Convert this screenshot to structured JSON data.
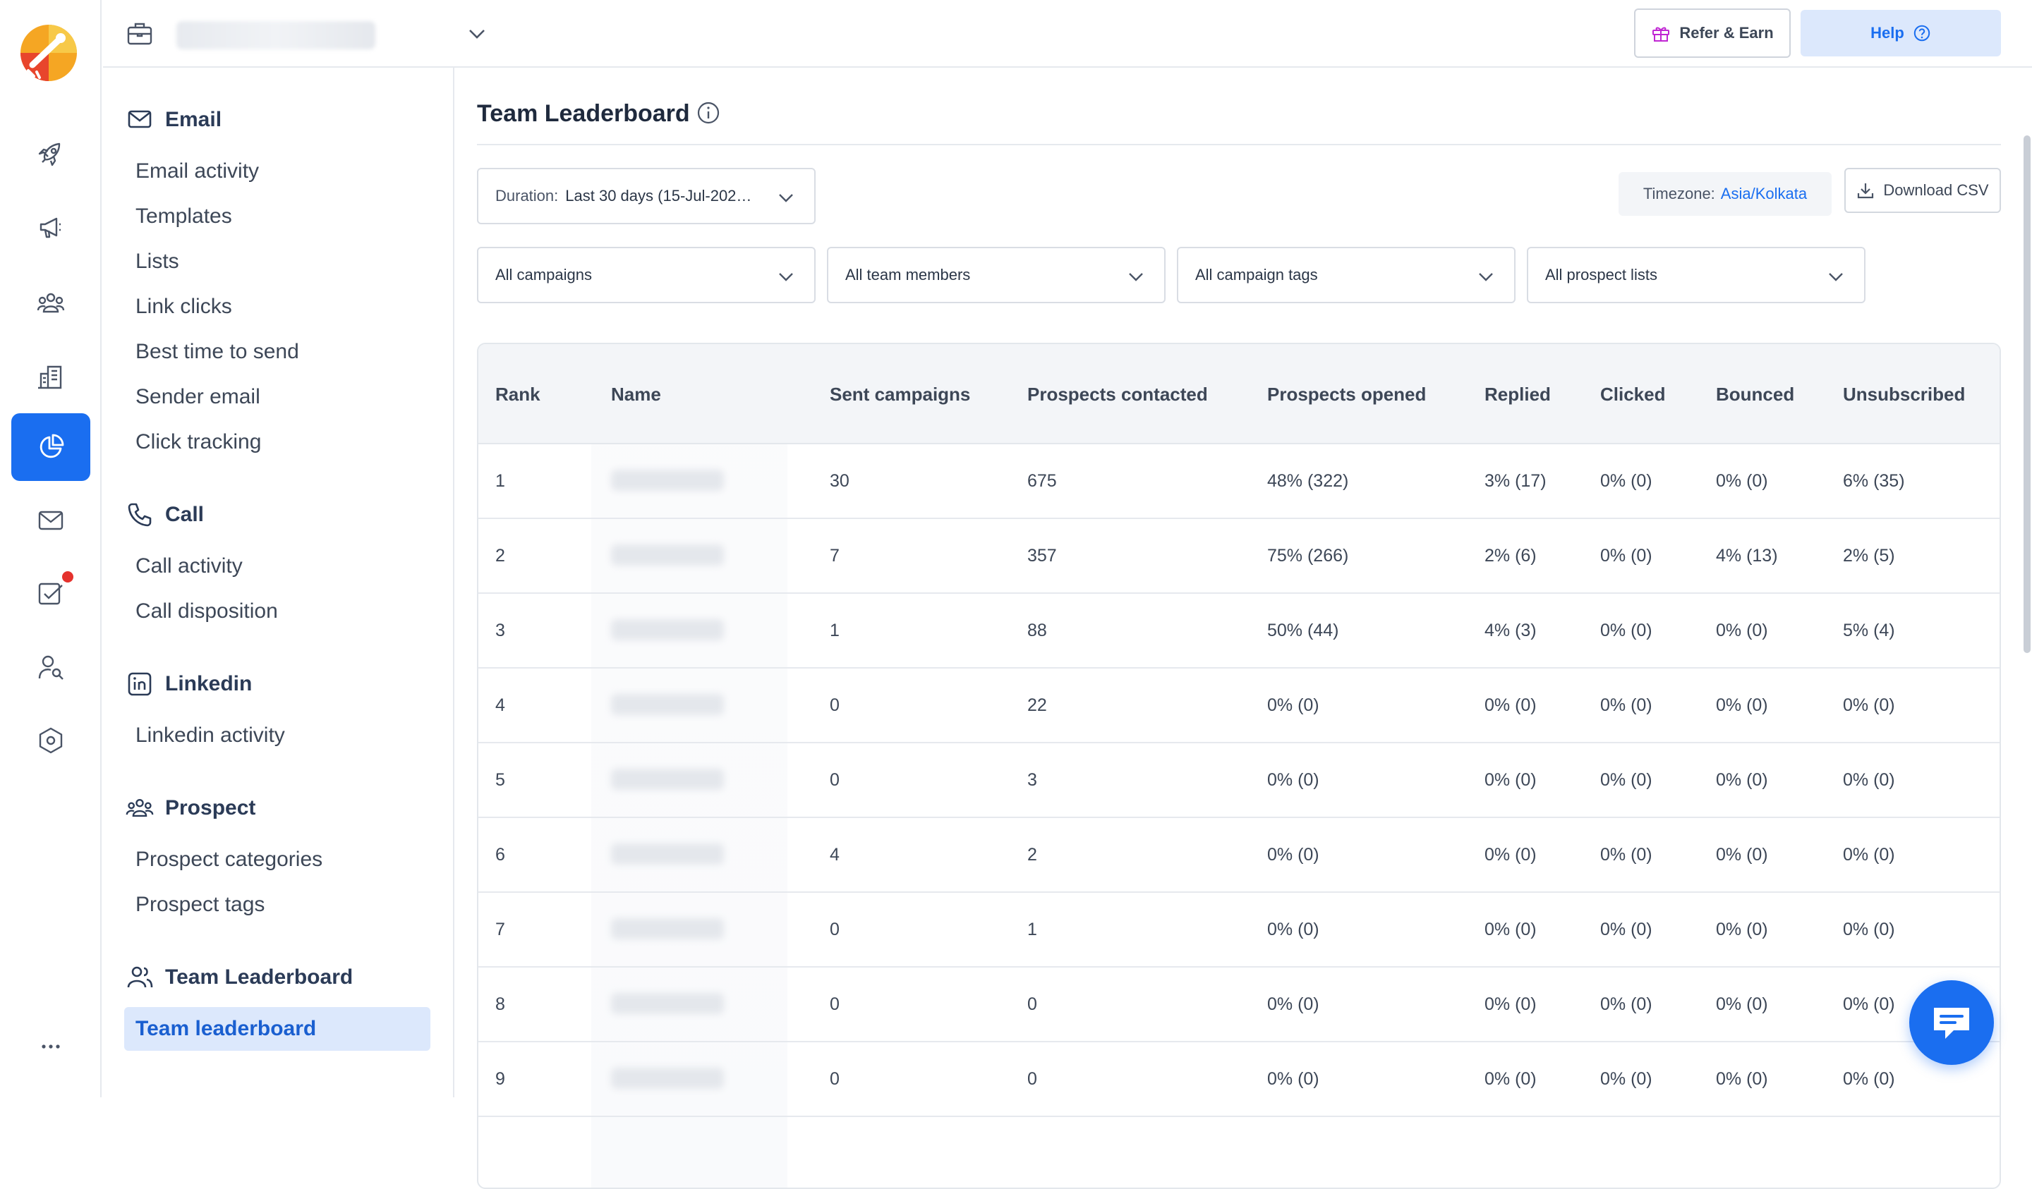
{
  "topbar": {
    "refer_label": "Refer & Earn",
    "help_label": "Help"
  },
  "rail": {
    "items": [
      {
        "icon": "rocket-icon"
      },
      {
        "icon": "megaphone-icon"
      },
      {
        "icon": "people-icon"
      },
      {
        "icon": "building-icon"
      },
      {
        "icon": "pie-chart-icon",
        "active": true
      },
      {
        "icon": "mail-icon"
      },
      {
        "icon": "task-check-icon",
        "badge": true
      },
      {
        "icon": "prospect-search-icon"
      },
      {
        "icon": "settings-hexagon-icon"
      },
      {
        "icon": "more-icon"
      }
    ]
  },
  "sidebar": {
    "email": {
      "title": "Email",
      "items": [
        "Email activity",
        "Templates",
        "Lists",
        "Link clicks",
        "Best time to send",
        "Sender email",
        "Click tracking"
      ]
    },
    "call": {
      "title": "Call",
      "items": [
        "Call activity",
        "Call disposition"
      ]
    },
    "linkedin": {
      "title": "Linkedin",
      "items": [
        "Linkedin activity"
      ]
    },
    "prospect": {
      "title": "Prospect",
      "items": [
        "Prospect categories",
        "Prospect tags"
      ]
    },
    "leaderboard": {
      "title": "Team Leaderboard",
      "items": [
        "Team leaderboard"
      ]
    }
  },
  "main": {
    "title": "Team Leaderboard",
    "duration_label": "Duration:",
    "duration_value": "Last 30 days (15-Jul-202…",
    "timezone_label": "Timezone:",
    "timezone_value": "Asia/Kolkata",
    "download_label": "Download CSV",
    "filters": [
      "All campaigns",
      "All team members",
      "All campaign tags",
      "All prospect lists"
    ]
  },
  "table": {
    "headers": [
      "Rank",
      "Name",
      "Sent campaigns",
      "Prospects contacted",
      "Prospects opened",
      "Replied",
      "Clicked",
      "Bounced",
      "Unsubscribed"
    ],
    "rows": [
      {
        "rank": "1",
        "sent": "30",
        "contacted": "675",
        "opened": "48% (322)",
        "replied": "3% (17)",
        "clicked": "0% (0)",
        "bounced": "0% (0)",
        "unsub": "6% (35)"
      },
      {
        "rank": "2",
        "sent": "7",
        "contacted": "357",
        "opened": "75% (266)",
        "replied": "2% (6)",
        "clicked": "0% (0)",
        "bounced": "4% (13)",
        "unsub": "2% (5)"
      },
      {
        "rank": "3",
        "sent": "1",
        "contacted": "88",
        "opened": "50% (44)",
        "replied": "4% (3)",
        "clicked": "0% (0)",
        "bounced": "0% (0)",
        "unsub": "5% (4)"
      },
      {
        "rank": "4",
        "sent": "0",
        "contacted": "22",
        "opened": "0% (0)",
        "replied": "0% (0)",
        "clicked": "0% (0)",
        "bounced": "0% (0)",
        "unsub": "0% (0)"
      },
      {
        "rank": "5",
        "sent": "0",
        "contacted": "3",
        "opened": "0% (0)",
        "replied": "0% (0)",
        "clicked": "0% (0)",
        "bounced": "0% (0)",
        "unsub": "0% (0)"
      },
      {
        "rank": "6",
        "sent": "4",
        "contacted": "2",
        "opened": "0% (0)",
        "replied": "0% (0)",
        "clicked": "0% (0)",
        "bounced": "0% (0)",
        "unsub": "0% (0)"
      },
      {
        "rank": "7",
        "sent": "0",
        "contacted": "1",
        "opened": "0% (0)",
        "replied": "0% (0)",
        "clicked": "0% (0)",
        "bounced": "0% (0)",
        "unsub": "0% (0)"
      },
      {
        "rank": "8",
        "sent": "0",
        "contacted": "0",
        "opened": "0% (0)",
        "replied": "0% (0)",
        "clicked": "0% (0)",
        "bounced": "0% (0)",
        "unsub": "0% (0)"
      },
      {
        "rank": "9",
        "sent": "0",
        "contacted": "0",
        "opened": "0% (0)",
        "replied": "0% (0)",
        "clicked": "0% (0)",
        "bounced": "0% (0)",
        "unsub": "0% (0)"
      }
    ]
  },
  "colors": {
    "accent": "#1a6ef0",
    "accent_light": "#dce8fc",
    "badge": "#e5322d"
  }
}
